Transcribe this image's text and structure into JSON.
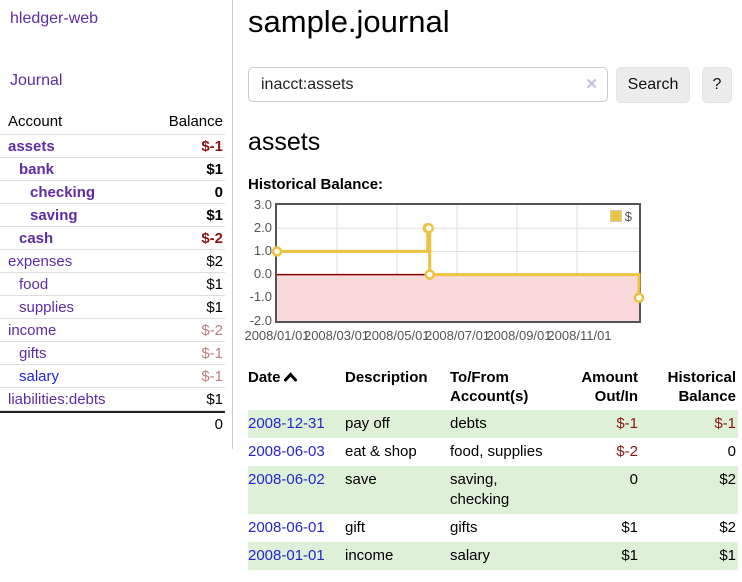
{
  "app": {
    "title": "hledger-web"
  },
  "colors": {
    "link_purple": "#5f2ca5",
    "link_blue": "#2525cc",
    "negative_strong": "#8b1515",
    "negative_muted": "#b97f7f",
    "row_stripe_green": "#dff0d8",
    "chart_line_gold": "#edc240",
    "chart_negative_fill": "#f9d9d9",
    "chart_zero_line": "#8b0000",
    "chart_border": "#545454",
    "grid_line": "#dddddd"
  },
  "sidebar": {
    "journal_link": "Journal",
    "table": {
      "headers": {
        "account": "Account",
        "balance": "Balance"
      },
      "rows": [
        {
          "account": "assets",
          "balance": "$-1",
          "indent": 1,
          "bold": true
        },
        {
          "account": "bank",
          "balance": "$1",
          "indent": 2,
          "bold": true
        },
        {
          "account": "checking",
          "balance": "0",
          "indent": 3,
          "bold": true
        },
        {
          "account": "saving",
          "balance": "$1",
          "indent": 3,
          "bold": true
        },
        {
          "account": "cash",
          "balance": "$-2",
          "indent": 2,
          "bold": true
        },
        {
          "account": "expenses",
          "balance": "$2",
          "indent": 1,
          "bold": false
        },
        {
          "account": "food",
          "balance": "$1",
          "indent": 2,
          "bold": false
        },
        {
          "account": "supplies",
          "balance": "$1",
          "indent": 2,
          "bold": false
        },
        {
          "account": "income",
          "balance": "$-2",
          "indent": 1,
          "bold": false
        },
        {
          "account": "gifts",
          "balance": "$-1",
          "indent": 2,
          "bold": false
        },
        {
          "account": "salary",
          "balance": "$-1",
          "indent": 2,
          "bold": false,
          "link_style": "blue"
        },
        {
          "account": "liabilities:debts",
          "balance": "$1",
          "indent": 1,
          "bold": false
        }
      ],
      "total": "0"
    }
  },
  "main": {
    "title": "sample.journal",
    "search": {
      "value": "inacct:assets",
      "clear_icon": "✕",
      "button": "Search",
      "help_button": "?"
    },
    "account_heading": "assets",
    "chart_title": "Historical Balance:"
  },
  "chart_data": {
    "type": "line",
    "steps": true,
    "title": "Historical Balance:",
    "xlim": [
      "2008-01-01",
      "2008-12-31"
    ],
    "ylim": [
      -2,
      3
    ],
    "y_ticks": [
      "3.0",
      "2.0",
      "1.0",
      "0.0",
      "-1.0",
      "-2.0"
    ],
    "x_ticks": [
      {
        "date": "2008-01-01",
        "label": "2008/01/01"
      },
      {
        "date": "2008-03-01",
        "label": "2008/03/01"
      },
      {
        "date": "2008-05-01",
        "label": "2008/05/01"
      },
      {
        "date": "2008-07-01",
        "label": "2008/07/01"
      },
      {
        "date": "2008-09-01",
        "label": "2008/09/01"
      },
      {
        "date": "2008-11-01",
        "label": "2008/11/01"
      }
    ],
    "grid": true,
    "legend_position": "top-right",
    "series": [
      {
        "name": "$",
        "color": "#edc240",
        "points": [
          [
            "2008-01-01",
            1
          ],
          [
            "2008-06-01",
            2
          ],
          [
            "2008-06-02",
            2
          ],
          [
            "2008-06-03",
            0
          ],
          [
            "2008-12-31",
            -1
          ]
        ]
      }
    ]
  },
  "register": {
    "headers": {
      "date": "Date",
      "description": "Description",
      "accounts": "To/From Account(s)",
      "amount": "Amount Out/In",
      "balance": "Historical Balance"
    },
    "sort": {
      "column": "date",
      "direction": "ascending"
    },
    "rows": [
      {
        "date": "2008-12-31",
        "description": "pay off",
        "accounts": "debts",
        "amount": "$-1",
        "balance": "$-1"
      },
      {
        "date": "2008-06-03",
        "description": "eat & shop",
        "accounts": "food, supplies",
        "amount": "$-2",
        "balance": "0"
      },
      {
        "date": "2008-06-02",
        "description": "save",
        "accounts": "saving, checking",
        "amount": "0",
        "balance": "$2"
      },
      {
        "date": "2008-06-01",
        "description": "gift",
        "accounts": "gifts",
        "amount": "$1",
        "balance": "$2"
      },
      {
        "date": "2008-01-01",
        "description": "income",
        "accounts": "salary",
        "amount": "$1",
        "balance": "$1"
      }
    ]
  }
}
